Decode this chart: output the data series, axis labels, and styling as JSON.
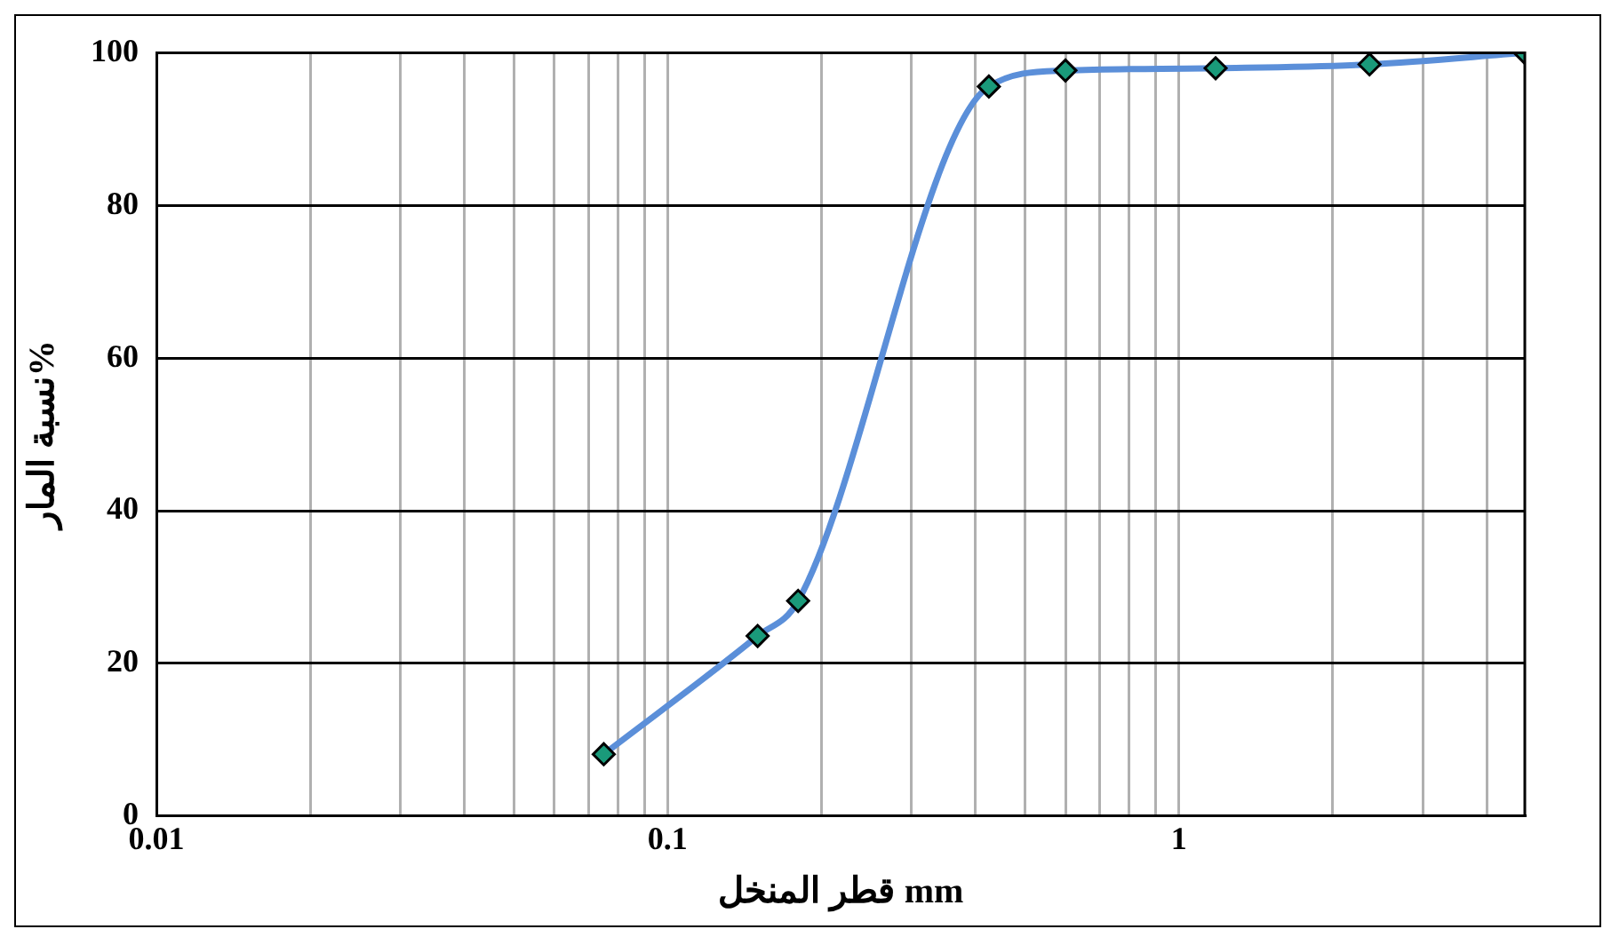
{
  "chart_data": {
    "type": "line",
    "xlabel": "قطر المنخل mm",
    "ylabel": "نسبة المار%",
    "log": "x",
    "x": [
      0.075,
      0.15,
      0.18,
      0.425,
      0.6,
      1.18,
      2.36,
      4.75
    ],
    "series": [
      {
        "color": "#5b8fd9",
        "values": [
          8.1,
          23.6,
          28.2,
          95.6,
          97.7,
          98,
          98.5,
          100
        ]
      }
    ],
    "marker": "diamond",
    "grid": true,
    "legend": false,
    "xlim": [
      0.01,
      4.75
    ],
    "xticks": [
      0.01,
      {
        "value": 0.02,
        "label": null
      },
      {
        "value": 0.03,
        "label": null
      },
      {
        "value": 0.04,
        "label": null
      },
      {
        "value": 0.05,
        "label": null
      },
      {
        "value": 0.06,
        "label": null
      },
      {
        "value": 0.07,
        "label": null
      },
      {
        "value": 0.08,
        "label": null
      },
      {
        "value": 0.09,
        "label": null
      },
      0.1,
      {
        "value": 0.2,
        "label": null
      },
      {
        "value": 0.3,
        "label": null
      },
      {
        "value": 0.4,
        "label": null
      },
      {
        "value": 0.5,
        "label": null
      },
      {
        "value": 0.6,
        "label": null
      },
      {
        "value": 0.7,
        "label": null
      },
      {
        "value": 0.8,
        "label": null
      },
      {
        "value": 0.9,
        "label": null
      },
      1,
      {
        "value": 2,
        "label": null
      },
      {
        "value": 3,
        "label": null
      },
      {
        "value": 4,
        "label": null
      }
    ],
    "ylim": [
      0,
      100
    ],
    "yticks": [
      0,
      20,
      40,
      60,
      80,
      100
    ]
  }
}
